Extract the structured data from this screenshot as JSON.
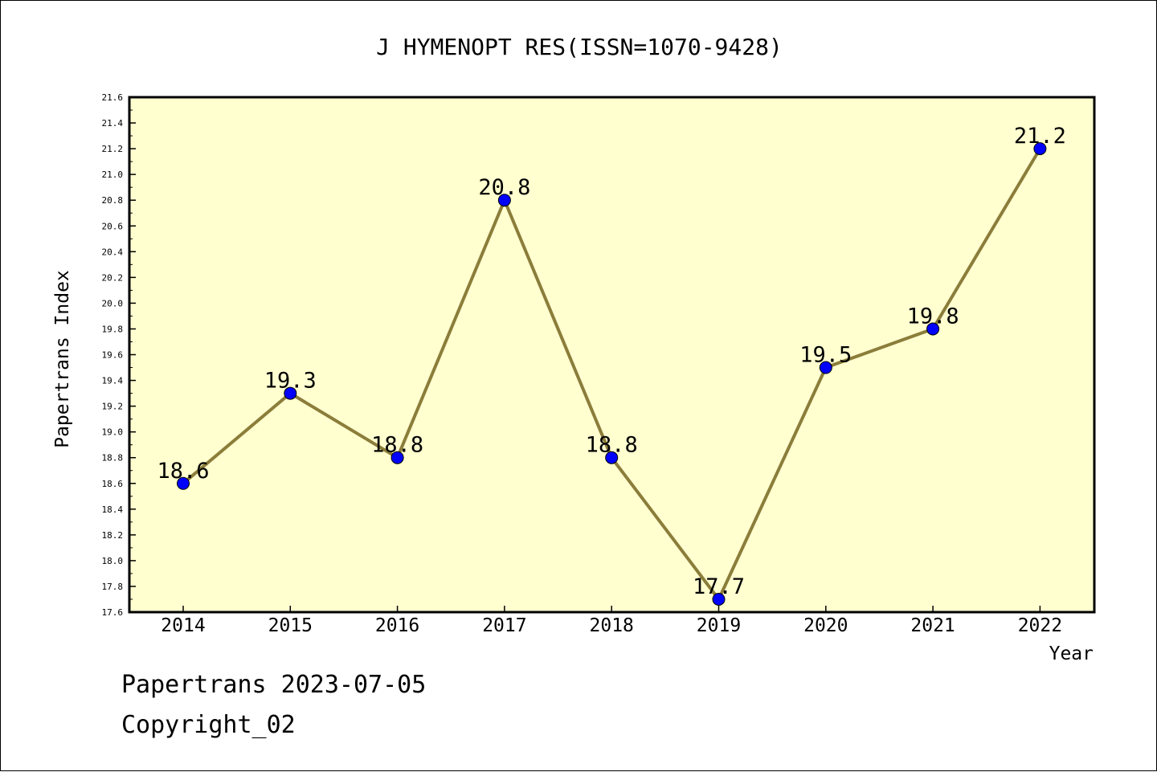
{
  "chart_data": {
    "type": "line",
    "title": "J HYMENOPT RES(ISSN=1070-9428)",
    "xlabel": "Year",
    "ylabel": "Papertrans Index",
    "categories": [
      "2014",
      "2015",
      "2016",
      "2017",
      "2018",
      "2019",
      "2020",
      "2021",
      "2022"
    ],
    "series": [
      {
        "values": [
          18.6,
          19.3,
          18.8,
          20.8,
          18.8,
          17.7,
          19.5,
          19.8,
          21.2
        ],
        "point_labels": [
          "18.6",
          "19.3",
          "18.8",
          "20.8",
          "18.8",
          "17.7",
          "19.5",
          "19.8",
          "21.2"
        ],
        "line_color": "#8b7d3a",
        "marker_color": "#0000ff"
      }
    ],
    "ylim": [
      17.6,
      21.6
    ],
    "yticks": [
      "17.6",
      "17.8",
      "18.0",
      "18.2",
      "18.4",
      "18.6",
      "18.8",
      "19.0",
      "19.2",
      "19.4",
      "19.6",
      "19.8",
      "20.0",
      "20.2",
      "20.4",
      "20.6",
      "20.8",
      "21.0",
      "21.2",
      "21.4",
      "21.6"
    ],
    "grid": false,
    "plot_background": "#ffffd0"
  },
  "footer": {
    "line1": "Papertrans 2023-07-05",
    "line2": "Copyright_02"
  }
}
